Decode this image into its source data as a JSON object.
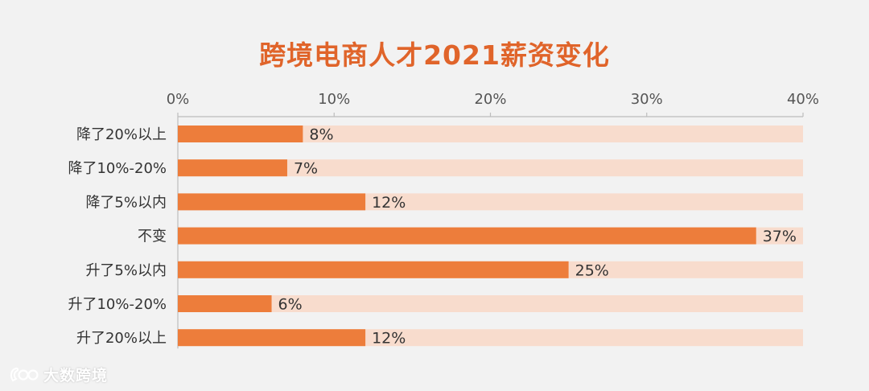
{
  "colors": {
    "title": "#e0642a",
    "bar": "#ed7d3b",
    "track": "#f8dccd",
    "axis": "#bdbdbd"
  },
  "watermark": {
    "text": "大数跨境",
    "icon": "logo-icon"
  },
  "chart_data": {
    "type": "bar",
    "orientation": "horizontal",
    "title": "跨境电商人才2021薪资变化",
    "xlim": [
      0,
      40
    ],
    "x_ticks": [
      "0%",
      "10%",
      "20%",
      "30%",
      "40%"
    ],
    "x_tick_values": [
      0,
      10,
      20,
      30,
      40
    ],
    "categories": [
      "降了20%以上",
      "降了10%-20%",
      "降了5%以内",
      "不变",
      "升了5%以内",
      "升了10%-20%",
      "升了20%以上"
    ],
    "values": [
      8,
      7,
      12,
      37,
      25,
      6,
      12
    ],
    "value_labels": [
      "8%",
      "7%",
      "12%",
      "37%",
      "25%",
      "6%",
      "12%"
    ],
    "track_max": 40,
    "grid": false,
    "axis_position": "top"
  }
}
